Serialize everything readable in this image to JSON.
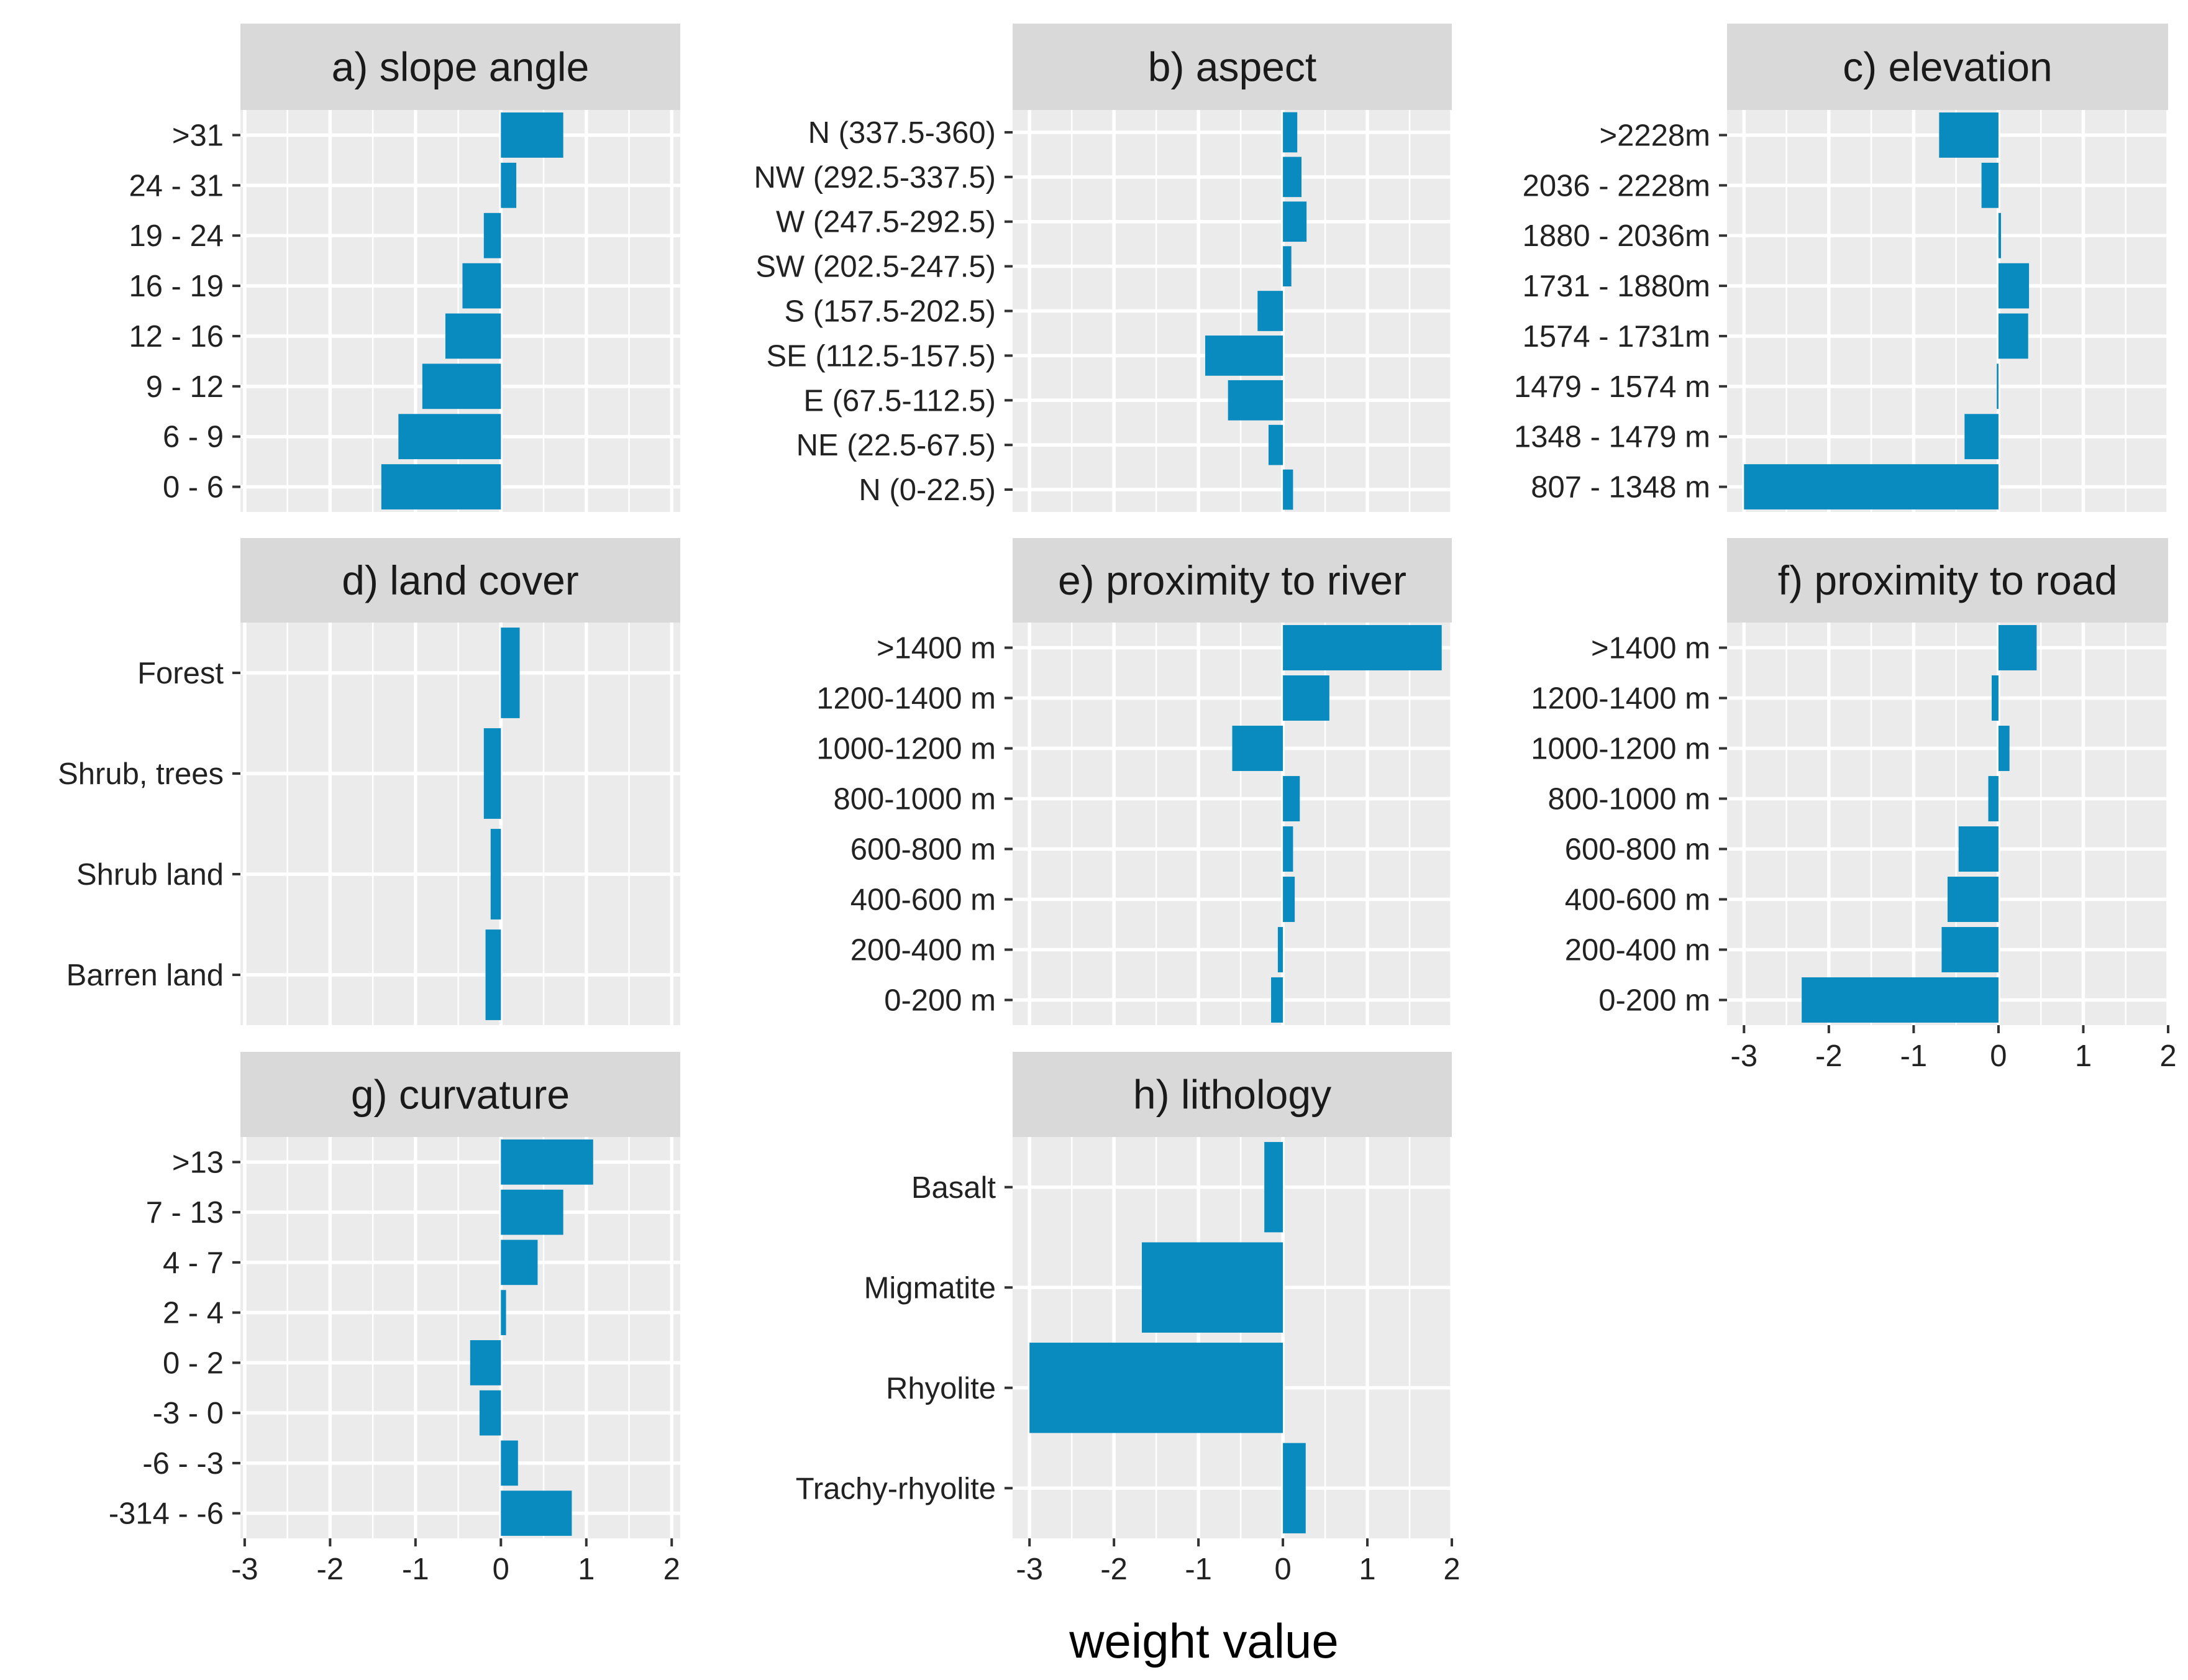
{
  "colors": {
    "bar": "#0a8bbf",
    "panel_bg": "#ebebeb",
    "grid": "#ffffff",
    "strip_bg": "#d9d9d9",
    "text": "#1a1a1a",
    "tick": "#333333"
  },
  "x_axis": {
    "title": "weight value",
    "ticks": [
      -3,
      -2,
      -1,
      0,
      1,
      2
    ],
    "tick_labels": [
      "-3",
      "-2",
      "-1",
      "0",
      "1",
      "2"
    ]
  },
  "chart_data": [
    {
      "type": "bar",
      "orientation": "horizontal",
      "panel": "a",
      "title": "a) slope angle",
      "categories": [
        ">31",
        "24 - 31",
        "19 - 24",
        "16 - 19",
        "12 - 16",
        "9 - 12",
        "6 - 9",
        "0 - 6"
      ],
      "values": [
        0.73,
        0.18,
        -0.2,
        -0.45,
        -0.65,
        -0.92,
        -1.2,
        -1.4
      ],
      "xlim": [
        -3.05,
        2.1
      ]
    },
    {
      "type": "bar",
      "orientation": "horizontal",
      "panel": "b",
      "title": "b) aspect",
      "categories": [
        "N (337.5-360)",
        "NW (292.5-337.5)",
        "W (247.5-292.5)",
        "SW (202.5-247.5)",
        "S (157.5-202.5)",
        "SE (112.5-157.5)",
        "E (67.5-112.5)",
        "NE (22.5-67.5)",
        "N (0-22.5)"
      ],
      "values": [
        0.17,
        0.22,
        0.28,
        0.1,
        -0.3,
        -0.92,
        -0.65,
        -0.17,
        0.12
      ],
      "xlim": [
        -3.2,
        2.0
      ]
    },
    {
      "type": "bar",
      "orientation": "horizontal",
      "panel": "c",
      "title": "c) elevation",
      "categories": [
        ">2228m",
        "2036 - 2228m",
        "1880 - 2036m",
        "1731 - 1880m",
        "1574 - 1731m",
        "1479 - 1574 m",
        "1348 - 1479 m",
        "807 - 1348 m"
      ],
      "values": [
        -0.7,
        -0.2,
        0.03,
        0.36,
        0.35,
        -0.02,
        -0.4,
        -3.0
      ],
      "xlim": [
        -3.2,
        2.0
      ]
    },
    {
      "type": "bar",
      "orientation": "horizontal",
      "panel": "d",
      "title": "d) land cover",
      "categories": [
        "Forest",
        "Shrub, trees",
        "Shrub land",
        "Barren land"
      ],
      "values": [
        0.22,
        -0.2,
        -0.12,
        -0.18
      ],
      "xlim": [
        -3.05,
        2.1
      ]
    },
    {
      "type": "bar",
      "orientation": "horizontal",
      "panel": "e",
      "title": "e) proximity to river",
      "categories": [
        ">1400 m",
        "1200-1400 m",
        "1000-1200 m",
        "800-1000 m",
        "600-800 m",
        "400-600 m",
        "200-400 m",
        "0-200 m"
      ],
      "values": [
        1.88,
        0.55,
        -0.6,
        0.2,
        0.12,
        0.14,
        -0.06,
        -0.14
      ],
      "xlim": [
        -3.2,
        2.0
      ]
    },
    {
      "type": "bar",
      "orientation": "horizontal",
      "panel": "f",
      "title": "f) proximity to road",
      "categories": [
        ">1400 m",
        "1200-1400 m",
        "1000-1200 m",
        "800-1000 m",
        "600-800 m",
        "400-600 m",
        "200-400 m",
        "0-200 m"
      ],
      "values": [
        0.45,
        -0.08,
        0.13,
        -0.12,
        -0.47,
        -0.6,
        -0.67,
        -2.32
      ],
      "xlim": [
        -3.2,
        2.0
      ]
    },
    {
      "type": "bar",
      "orientation": "horizontal",
      "panel": "g",
      "title": "g) curvature",
      "categories": [
        ">13",
        "7 - 13",
        "4 - 7",
        "2 - 4",
        "0 - 2",
        "-3 - 0",
        "-6 - -3",
        "-314 - -6"
      ],
      "values": [
        1.08,
        0.73,
        0.43,
        0.06,
        -0.36,
        -0.25,
        0.2,
        0.83
      ],
      "xlim": [
        -3.05,
        2.1
      ]
    },
    {
      "type": "bar",
      "orientation": "horizontal",
      "panel": "h",
      "title": "h) lithology",
      "categories": [
        "Basalt",
        "Migmatite",
        "Rhyolite",
        "Trachy-rhyolite"
      ],
      "values": [
        -0.22,
        -1.67,
        -3.0,
        0.27
      ],
      "xlim": [
        -3.2,
        2.0
      ]
    }
  ]
}
